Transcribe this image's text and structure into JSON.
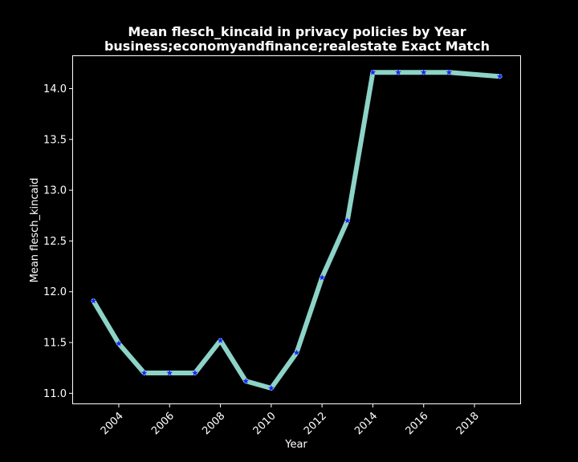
{
  "chart_data": {
    "type": "line",
    "title_line1": "Mean flesch_kincaid in privacy policies by Year",
    "title_line2": "business;economyandfinance;realestate Exact Match",
    "xlabel": "Year",
    "ylabel": "Mean flesch_kincaid",
    "xlim": [
      2002.2,
      2019.8
    ],
    "ylim": [
      10.9,
      14.32
    ],
    "xticks": [
      2004,
      2006,
      2008,
      2010,
      2012,
      2014,
      2016,
      2018
    ],
    "yticks": [
      11.0,
      11.5,
      12.0,
      12.5,
      13.0,
      13.5,
      14.0
    ],
    "x": [
      2003,
      2004,
      2005,
      2006,
      2007,
      2008,
      2009,
      2010,
      2011,
      2012,
      2013,
      2014,
      2015,
      2016,
      2017,
      2019
    ],
    "y": [
      11.91,
      11.49,
      11.2,
      11.2,
      11.2,
      11.52,
      11.12,
      11.05,
      11.4,
      12.14,
      12.7,
      14.16,
      14.16,
      14.16,
      14.16,
      14.12
    ],
    "line_color": "#8dd3c7",
    "marker_color": "#1f1fff",
    "marker": "star",
    "grid": false
  }
}
